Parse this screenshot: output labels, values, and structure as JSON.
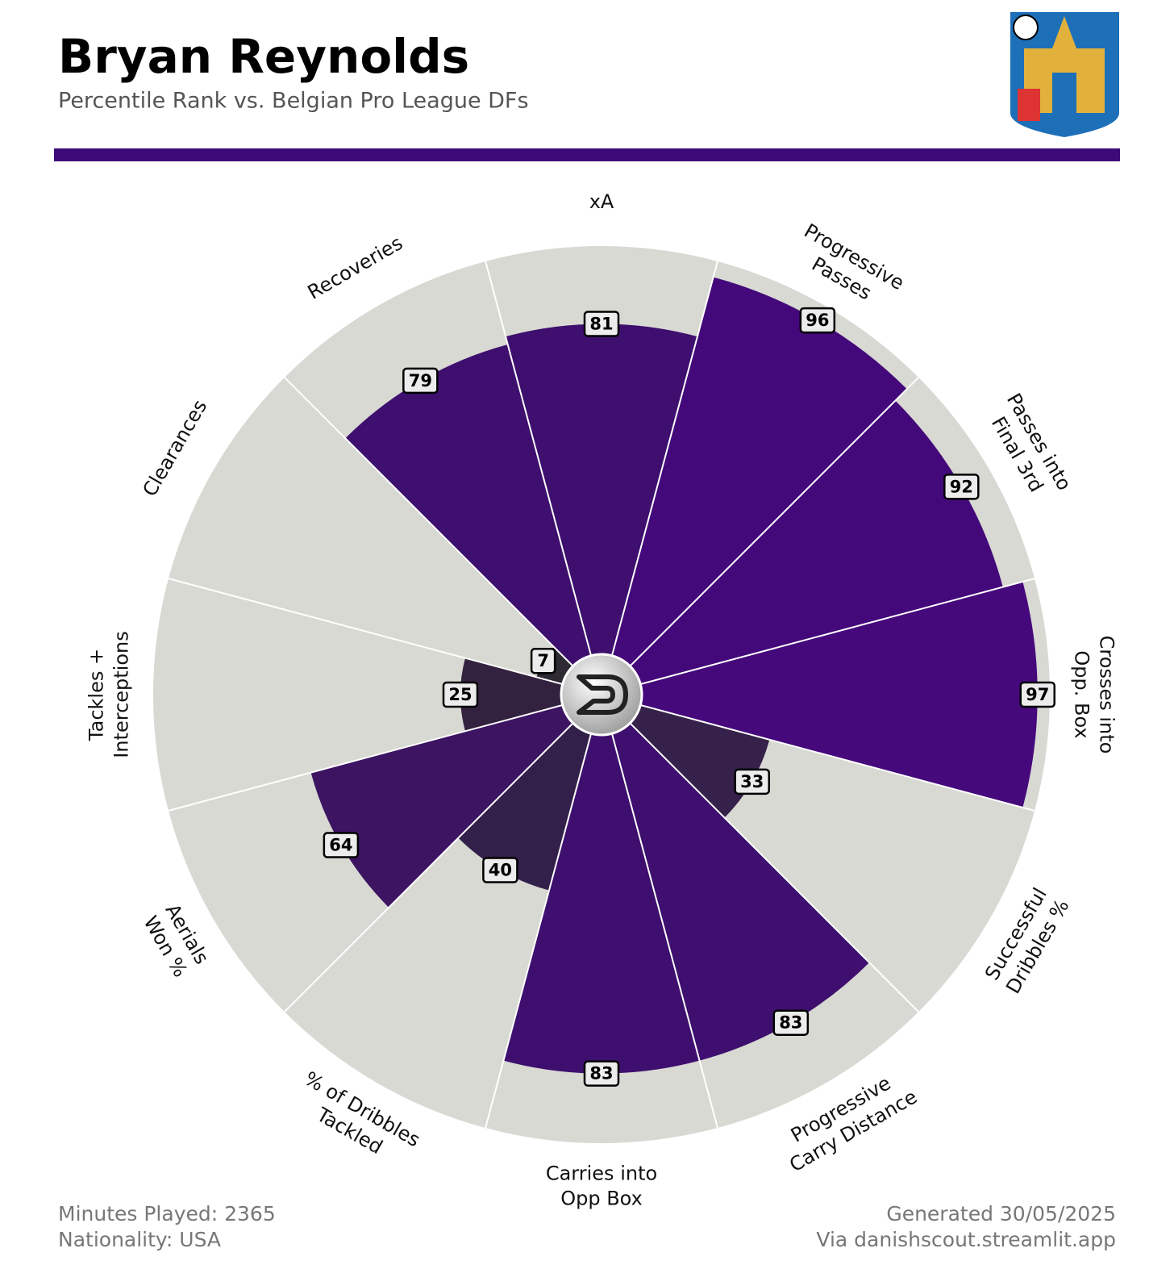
{
  "chart_data": {
    "type": "pizza",
    "title": "Bryan Reynolds",
    "subtitle": "Percentile Rank vs. Belgian Pro League DFs",
    "categories": [
      [
        "xA"
      ],
      [
        "Progressive",
        "Passes"
      ],
      [
        "Passes into",
        "Final 3rd"
      ],
      [
        "Crosses into",
        "Opp. Box"
      ],
      [
        "Successful",
        "Dribbles %"
      ],
      [
        "Progressive",
        "Carry Distance"
      ],
      [
        "Carries into",
        "Opp Box"
      ],
      [
        "% of Dribbles",
        "Tackled"
      ],
      [
        "Aerials",
        "Won %"
      ],
      [
        "Tackles +",
        "Interceptions"
      ],
      [
        "Clearances"
      ],
      [
        "Recoveries"
      ]
    ],
    "values": [
      81,
      96,
      92,
      97,
      33,
      83,
      83,
      40,
      64,
      25,
      7,
      79
    ],
    "colors": [
      "#3e0f6e",
      "#43097a",
      "#43097a",
      "#45097c",
      "#35214a",
      "#3e0f6e",
      "#3e0f6e",
      "#33204a",
      "#3c1462",
      "#33223f",
      "#2e2a33",
      "#3e0f6e"
    ],
    "background_color": "#d8d9d3",
    "ylim": [
      0,
      100
    ],
    "footer": {
      "minutes": "Minutes Played: 2365",
      "nationality": "Nationality: USA",
      "generated": "Generated 30/05/2025",
      "source": "Via danishscout.streamlit.app"
    }
  }
}
